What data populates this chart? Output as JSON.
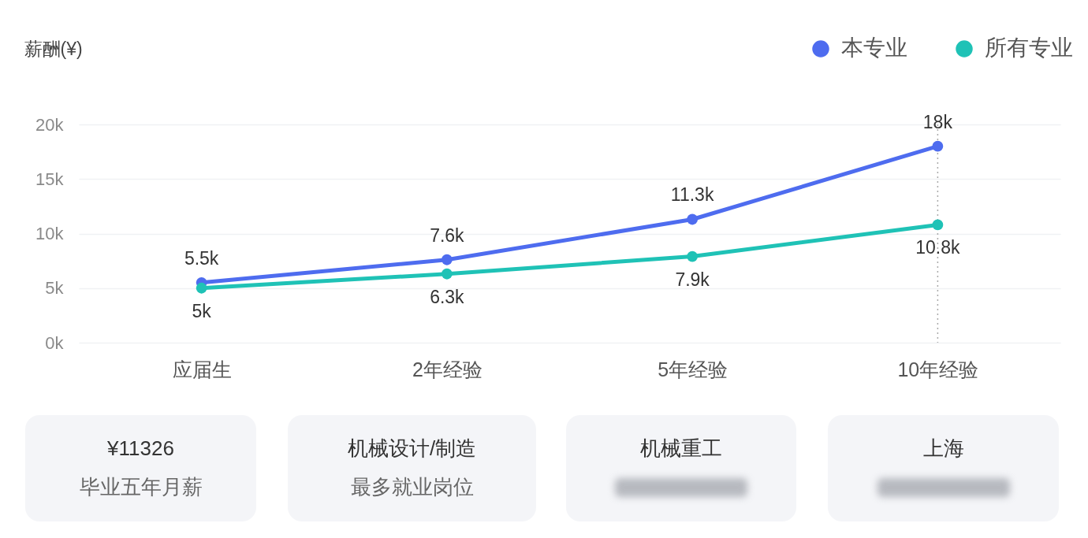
{
  "chart_data": [
    {
      "type": "line",
      "ylabel": "薪酬(¥)",
      "categories": [
        "应届生",
        "2年经验",
        "5年经验",
        "10年经验"
      ],
      "series": [
        {
          "name": "本专业",
          "color": "#4e6cef",
          "values": [
            5500,
            7600,
            11300,
            18000
          ],
          "value_labels": [
            "5.5k",
            "7.6k",
            "11.3k",
            "18k"
          ]
        },
        {
          "name": "所有专业",
          "color": "#1fc2b6",
          "values": [
            5000,
            6300,
            7900,
            10800
          ],
          "value_labels": [
            "5k",
            "6.3k",
            "7.9k",
            "10.8k"
          ]
        }
      ],
      "ylim": [
        0,
        20000
      ],
      "yticks": [
        {
          "value": 0,
          "label": "0k"
        },
        {
          "value": 5000,
          "label": "5k"
        },
        {
          "value": 10000,
          "label": "10k"
        },
        {
          "value": 15000,
          "label": "15k"
        },
        {
          "value": 20000,
          "label": "20k"
        }
      ],
      "grid": "y",
      "legend": "top right",
      "marker": "circle",
      "ref_lines": [
        {
          "axis": "x",
          "value": "10年经验",
          "color": "#a9a9a9",
          "line_style": "dotted"
        }
      ]
    },
    {
      "type": "other",
      "title": "¥11326",
      "subtitle": "毕业五年月薪"
    },
    {
      "type": "other",
      "title": "机械设计/制造",
      "subtitle": "最多就业岗位"
    },
    {
      "type": "other",
      "title": "机械重工"
    },
    {
      "type": "other",
      "title": "上海"
    }
  ]
}
